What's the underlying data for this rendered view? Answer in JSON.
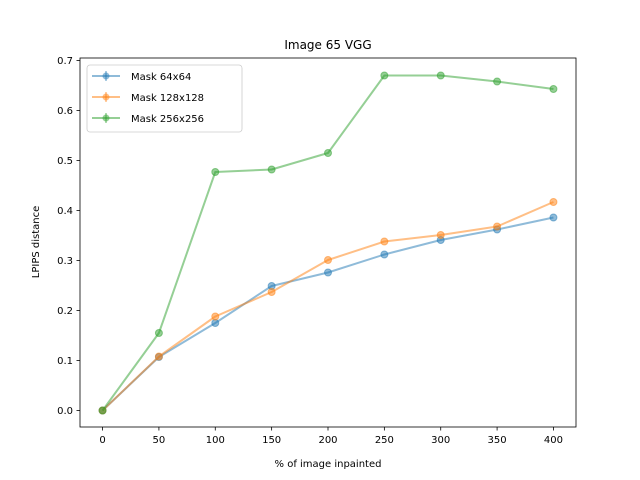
{
  "chart_data": {
    "type": "line",
    "title": "Image 65 VGG",
    "xlabel": "% of image inpainted",
    "ylabel": "LPIPS distance",
    "x": [
      0,
      50,
      100,
      150,
      200,
      250,
      300,
      350,
      400
    ],
    "xlim": [
      -20,
      420
    ],
    "ylim": [
      -0.033,
      0.705
    ],
    "xticks": [
      "0",
      "50",
      "100",
      "150",
      "200",
      "250",
      "300",
      "350",
      "400"
    ],
    "xtick_values": [
      0,
      50,
      100,
      150,
      200,
      250,
      300,
      350,
      400
    ],
    "yticks": [
      "0.0",
      "0.1",
      "0.2",
      "0.3",
      "0.4",
      "0.5",
      "0.6",
      "0.7"
    ],
    "ytick_values": [
      0.0,
      0.1,
      0.2,
      0.3,
      0.4,
      0.5,
      0.6,
      0.7
    ],
    "grid": false,
    "legend_position": "top-left",
    "series": [
      {
        "name": "Mask 64x64",
        "color": "#1f77b4",
        "values": [
          0.0,
          0.107,
          0.175,
          0.249,
          0.276,
          0.312,
          0.341,
          0.362,
          0.386
        ]
      },
      {
        "name": "Mask 128x128",
        "color": "#ff7f0e",
        "values": [
          0.0,
          0.108,
          0.188,
          0.237,
          0.301,
          0.338,
          0.351,
          0.368,
          0.417
        ]
      },
      {
        "name": "Mask 256x256",
        "color": "#2ca02c",
        "values": [
          0.0,
          0.155,
          0.477,
          0.482,
          0.515,
          0.67,
          0.67,
          0.658,
          0.643
        ]
      }
    ]
  }
}
